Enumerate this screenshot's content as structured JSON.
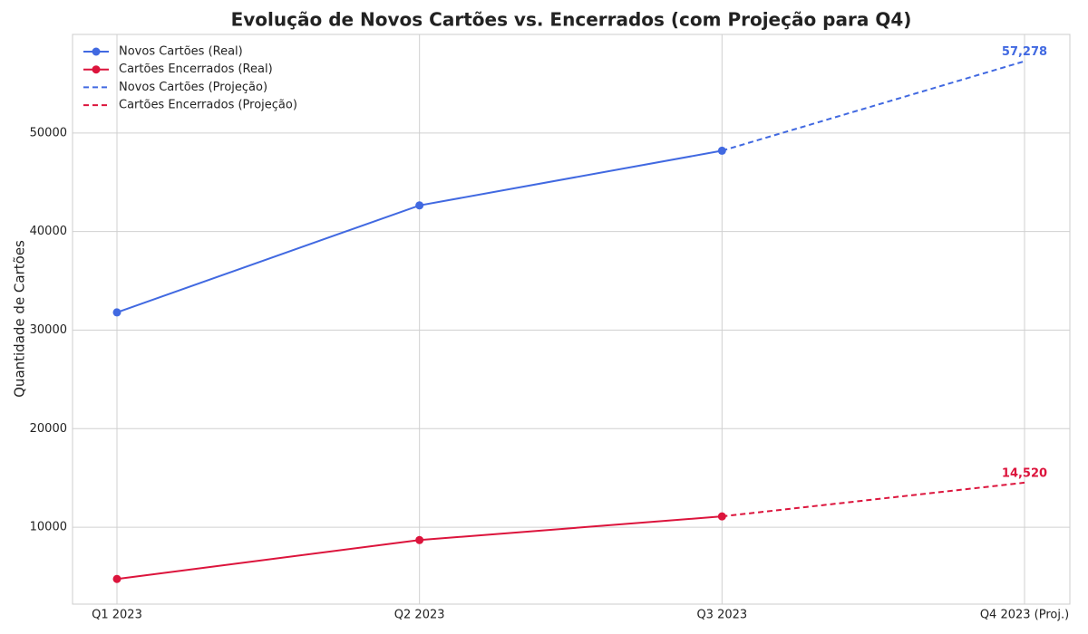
{
  "chart_data": {
    "type": "line",
    "title": "Evolução de Novos Cartões vs. Encerrados (com Projeção para Q4)",
    "ylabel": "Quantidade de Cartões",
    "categories": [
      "Q1 2023",
      "Q2 2023",
      "Q3 2023",
      "Q4 2023 (Proj.)"
    ],
    "series": [
      {
        "name": "Novos Cartões (Real)",
        "color": "#4169e1",
        "dashed": false,
        "marker": true,
        "values": [
          31800,
          42650,
          48200,
          null
        ]
      },
      {
        "name": "Cartões Encerrados (Real)",
        "color": "#dc143c",
        "dashed": false,
        "marker": true,
        "values": [
          4750,
          8700,
          11100,
          null
        ]
      },
      {
        "name": "Novos Cartões (Projeção)",
        "color": "#4169e1",
        "dashed": true,
        "marker": false,
        "values": [
          null,
          null,
          48200,
          57278
        ],
        "value_labels": [
          null,
          null,
          null,
          "57,278"
        ]
      },
      {
        "name": "Cartões Encerrados (Projeção)",
        "color": "#dc143c",
        "dashed": true,
        "marker": false,
        "values": [
          null,
          null,
          11100,
          14520
        ],
        "value_labels": [
          null,
          null,
          null,
          "14,520"
        ]
      }
    ],
    "ylim": [
      2200,
      60000
    ],
    "yticks": [
      10000,
      20000,
      30000,
      40000,
      50000
    ],
    "grid": true,
    "legend": "upper-left"
  }
}
